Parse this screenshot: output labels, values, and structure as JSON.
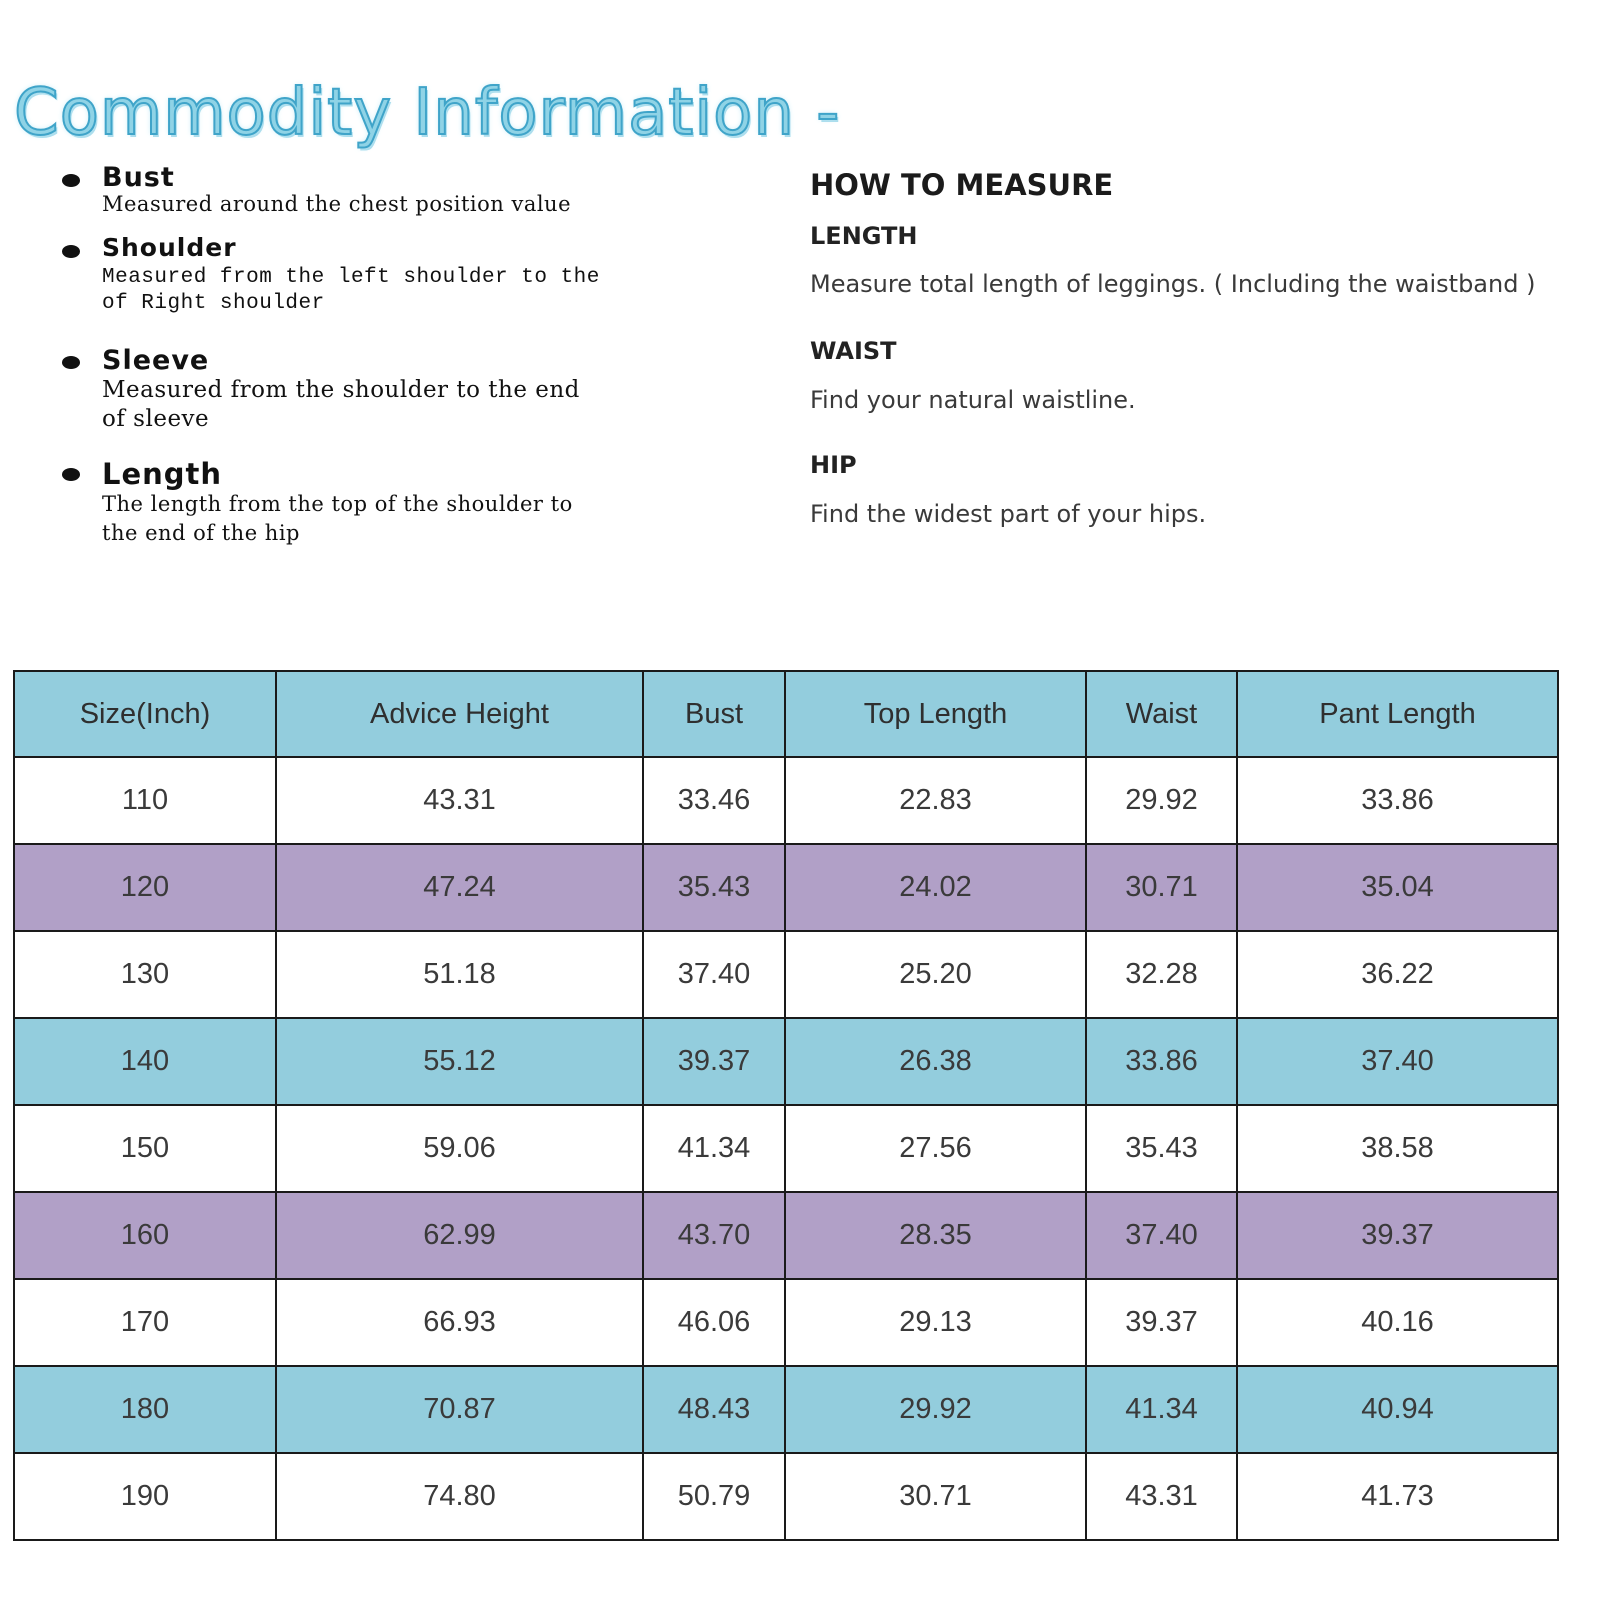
{
  "title": "Commodity Information -",
  "definitions": [
    {
      "name": "Bust",
      "desc": "Measured around the chest position value"
    },
    {
      "name": "Shoulder",
      "desc_line1": "Measured from the left shoulder to the",
      "desc_line2": "of Right shoulder"
    },
    {
      "name": "Sleeve",
      "desc_line1": "Measured from the shoulder to the end",
      "desc_line2": "of sleeve"
    },
    {
      "name": "Length",
      "desc_line1": "The length from the top of the shoulder to",
      "desc_line2": "the end of the hip"
    }
  ],
  "how_to_measure": {
    "title": "HOW TO MEASURE",
    "items": [
      {
        "heading": "LENGTH",
        "text": "Measure total length of leggings. ( Including the waistband )"
      },
      {
        "heading": "WAIST",
        "text": "Find your natural waistline."
      },
      {
        "heading": "HIP",
        "text": "Find the widest part of your hips."
      }
    ]
  },
  "size_table": {
    "headers": [
      "Size(Inch)",
      "Advice Height",
      "Bust",
      "Top Length",
      "Waist",
      "Pant Length"
    ],
    "rows": [
      {
        "style": "white",
        "cells": [
          "110",
          "43.31",
          "33.46",
          "22.83",
          "29.92",
          "33.86"
        ]
      },
      {
        "style": "purple",
        "cells": [
          "120",
          "47.24",
          "35.43",
          "24.02",
          "30.71",
          "35.04"
        ]
      },
      {
        "style": "white",
        "cells": [
          "130",
          "51.18",
          "37.40",
          "25.20",
          "32.28",
          "36.22"
        ]
      },
      {
        "style": "blue",
        "cells": [
          "140",
          "55.12",
          "39.37",
          "26.38",
          "33.86",
          "37.40"
        ]
      },
      {
        "style": "white",
        "cells": [
          "150",
          "59.06",
          "41.34",
          "27.56",
          "35.43",
          "38.58"
        ]
      },
      {
        "style": "purple",
        "cells": [
          "160",
          "62.99",
          "43.70",
          "28.35",
          "37.40",
          "39.37"
        ]
      },
      {
        "style": "white",
        "cells": [
          "170",
          "66.93",
          "46.06",
          "29.13",
          "39.37",
          "40.16"
        ]
      },
      {
        "style": "blue",
        "cells": [
          "180",
          "70.87",
          "48.43",
          "29.92",
          "41.34",
          "40.94"
        ]
      },
      {
        "style": "white",
        "cells": [
          "190",
          "74.80",
          "50.79",
          "30.71",
          "43.31",
          "41.73"
        ]
      }
    ]
  },
  "colors": {
    "header_fill": "#93cddd",
    "band_purple": "#b1a0c7",
    "band_blue": "#93cddd",
    "title_color": "#8fd3e6"
  }
}
